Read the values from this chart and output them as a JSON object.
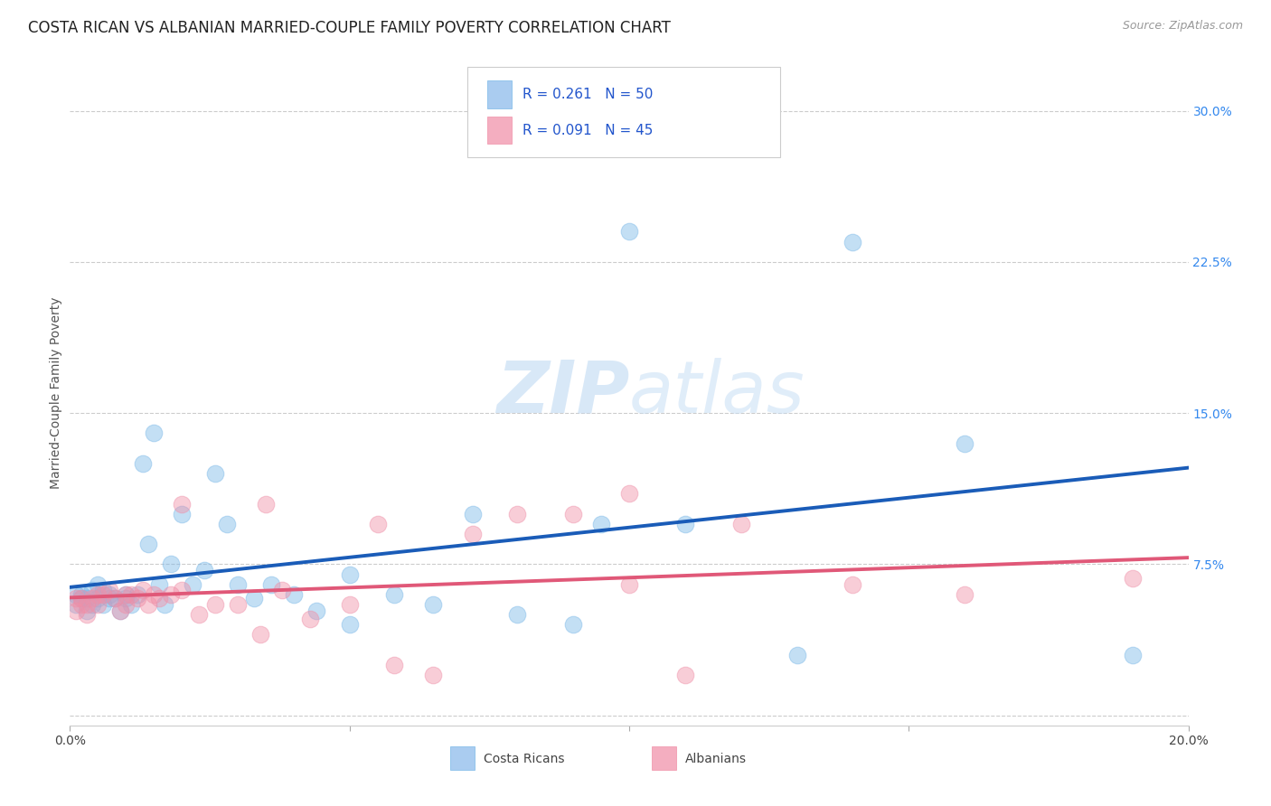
{
  "title": "COSTA RICAN VS ALBANIAN MARRIED-COUPLE FAMILY POVERTY CORRELATION CHART",
  "source": "Source: ZipAtlas.com",
  "ylabel": "Married-Couple Family Poverty",
  "xlim": [
    0.0,
    0.2
  ],
  "ylim": [
    -0.005,
    0.325
  ],
  "ytick_vals": [
    0.0,
    0.075,
    0.15,
    0.225,
    0.3
  ],
  "ytick_labels": [
    "",
    "7.5%",
    "15.0%",
    "22.5%",
    "30.0%"
  ],
  "xtick_vals": [
    0.0,
    0.05,
    0.1,
    0.15,
    0.2
  ],
  "xtick_labels": [
    "0.0%",
    "",
    "",
    "",
    "20.0%"
  ],
  "costa_ricans_color": "#7ab8e8",
  "albanians_color": "#f090a8",
  "legend_blue_fill": "#aaccf0",
  "legend_pink_fill": "#f4aec0",
  "regression_blue": "#1a5cb8",
  "regression_pink": "#e05878",
  "watermark_color": "#c8dff5",
  "grid_color": "#cccccc",
  "title_color": "#222222",
  "source_color": "#999999",
  "tick_color_y": "#3388ee",
  "tick_color_x": "#444444",
  "background_color": "#ffffff",
  "costa_ricans_x": [
    0.001,
    0.001,
    0.002,
    0.002,
    0.003,
    0.003,
    0.004,
    0.004,
    0.005,
    0.005,
    0.006,
    0.006,
    0.007,
    0.007,
    0.008,
    0.009,
    0.01,
    0.01,
    0.011,
    0.012,
    0.013,
    0.014,
    0.015,
    0.016,
    0.017,
    0.018,
    0.02,
    0.022,
    0.024,
    0.026,
    0.028,
    0.03,
    0.033,
    0.036,
    0.04,
    0.044,
    0.05,
    0.058,
    0.065,
    0.072,
    0.08,
    0.09,
    0.1,
    0.11,
    0.13,
    0.16,
    0.19,
    0.05,
    0.095,
    0.14
  ],
  "costa_ricans_y": [
    0.06,
    0.055,
    0.06,
    0.058,
    0.058,
    0.052,
    0.062,
    0.055,
    0.065,
    0.058,
    0.062,
    0.055,
    0.06,
    0.058,
    0.058,
    0.052,
    0.058,
    0.06,
    0.055,
    0.06,
    0.125,
    0.085,
    0.14,
    0.065,
    0.055,
    0.075,
    0.1,
    0.065,
    0.072,
    0.12,
    0.095,
    0.065,
    0.058,
    0.065,
    0.06,
    0.052,
    0.045,
    0.06,
    0.055,
    0.1,
    0.05,
    0.045,
    0.24,
    0.095,
    0.03,
    0.135,
    0.03,
    0.07,
    0.095,
    0.235
  ],
  "albanians_x": [
    0.001,
    0.001,
    0.002,
    0.002,
    0.003,
    0.003,
    0.004,
    0.005,
    0.005,
    0.006,
    0.007,
    0.008,
    0.009,
    0.01,
    0.01,
    0.011,
    0.012,
    0.013,
    0.014,
    0.015,
    0.016,
    0.018,
    0.02,
    0.023,
    0.026,
    0.03,
    0.034,
    0.038,
    0.043,
    0.05,
    0.058,
    0.065,
    0.072,
    0.08,
    0.09,
    0.1,
    0.11,
    0.12,
    0.14,
    0.16,
    0.02,
    0.035,
    0.055,
    0.1,
    0.19
  ],
  "albanians_y": [
    0.058,
    0.052,
    0.058,
    0.055,
    0.055,
    0.05,
    0.058,
    0.06,
    0.055,
    0.06,
    0.062,
    0.058,
    0.052,
    0.06,
    0.055,
    0.06,
    0.058,
    0.062,
    0.055,
    0.06,
    0.058,
    0.06,
    0.062,
    0.05,
    0.055,
    0.055,
    0.04,
    0.062,
    0.048,
    0.055,
    0.025,
    0.02,
    0.09,
    0.1,
    0.1,
    0.11,
    0.02,
    0.095,
    0.065,
    0.06,
    0.105,
    0.105,
    0.095,
    0.065,
    0.068
  ],
  "title_fontsize": 12,
  "source_fontsize": 9,
  "tick_fontsize": 10,
  "ylabel_fontsize": 10,
  "legend_fontsize": 11
}
